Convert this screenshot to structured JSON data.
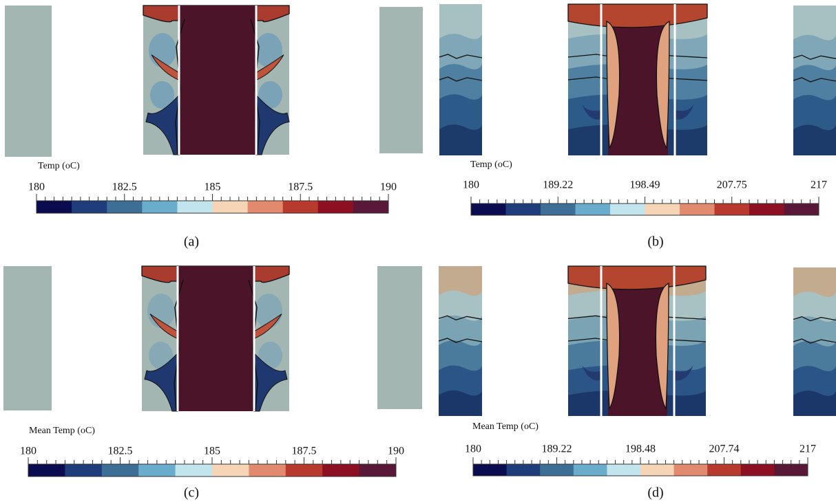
{
  "panels": [
    {
      "colorbar": {
        "title": "Temp (oC)",
        "ticks": [
          180,
          182.5,
          185,
          187.5,
          190
        ],
        "colors": [
          "#0b0b50",
          "#1f3d7a",
          "#3d6e96",
          "#6aaccb",
          "#c2e4ec",
          "#f5d5b5",
          "#e28a6e",
          "#b8392e",
          "#8c0f22",
          "#5a1838"
        ]
      },
      "caption": "(a)"
    },
    {
      "colorbar": {
        "title": "Temp (oC)",
        "ticks": [
          180,
          189.22,
          198.49,
          207.75,
          217
        ],
        "colors": [
          "#0b0b50",
          "#1f3d7a",
          "#3d6e96",
          "#6aaccb",
          "#c2e4ec",
          "#f5d5b5",
          "#e28a6e",
          "#b8392e",
          "#8c0f22",
          "#5a1838"
        ]
      },
      "caption": "(b)"
    },
    {
      "colorbar": {
        "title": "Mean Temp (oC)",
        "ticks": [
          180,
          182.5,
          185,
          187.5,
          190
        ],
        "colors": [
          "#0b0b50",
          "#1f3d7a",
          "#3d6e96",
          "#6aaccb",
          "#c2e4ec",
          "#f5d5b5",
          "#e28a6e",
          "#b8392e",
          "#8c0f22",
          "#5a1838"
        ]
      },
      "caption": "(c)"
    },
    {
      "colorbar": {
        "title": "Mean Temp (oC)",
        "ticks": [
          180,
          189.22,
          198.48,
          207.74,
          217
        ],
        "colors": [
          "#0b0b50",
          "#1f3d7a",
          "#3d6e96",
          "#6aaccb",
          "#c2e4ec",
          "#f5d5b5",
          "#e28a6e",
          "#b8392e",
          "#8c0f22",
          "#5a1838"
        ]
      },
      "caption": "(d)"
    }
  ]
}
